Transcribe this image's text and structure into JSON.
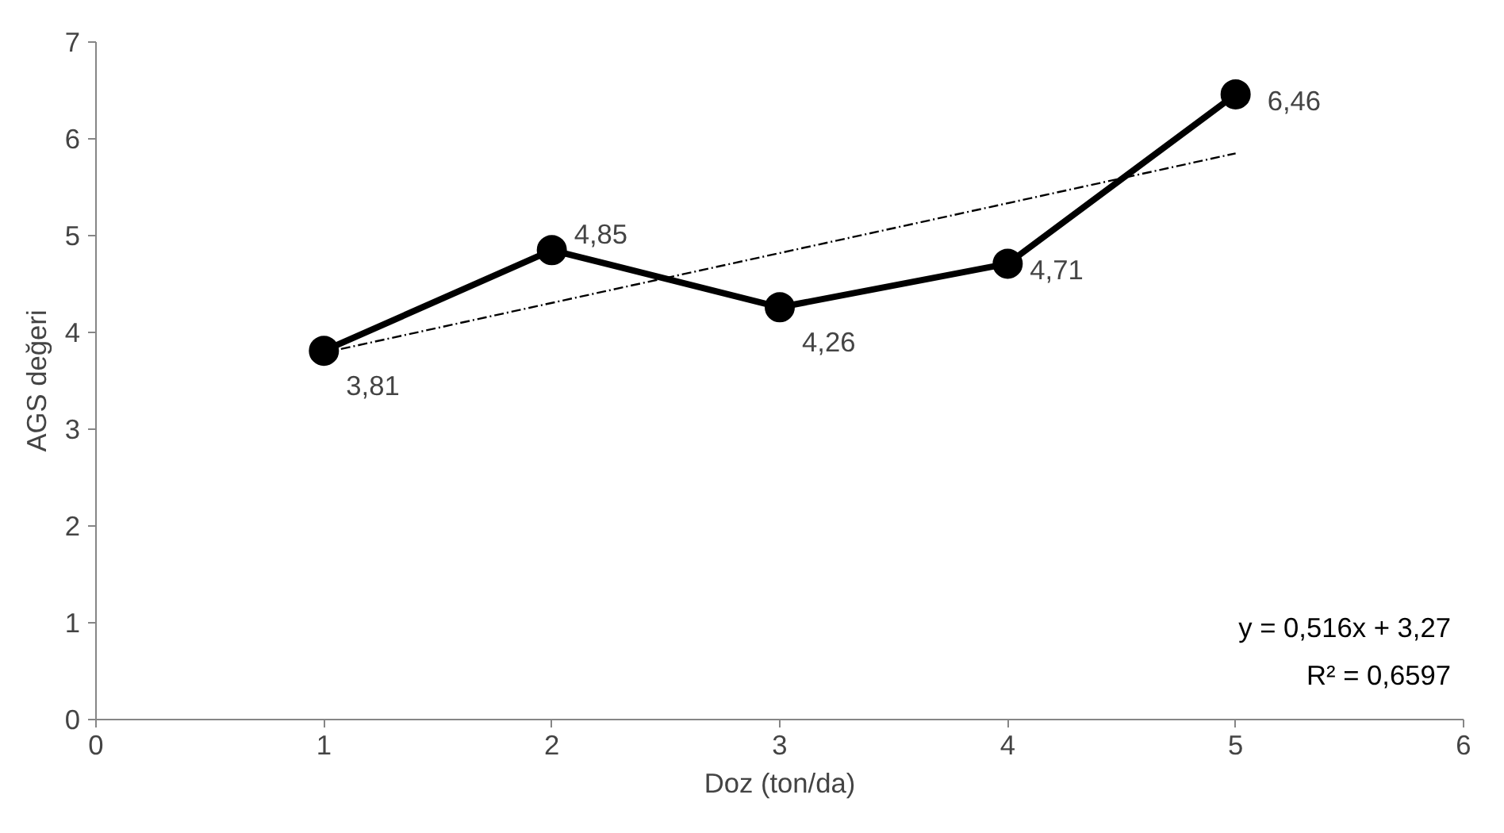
{
  "chart_data": {
    "type": "line",
    "xlabel": "Doz (ton/da)",
    "ylabel": "AGS değeri",
    "x": [
      1,
      2,
      3,
      4,
      5
    ],
    "series": [
      {
        "color": "#000000",
        "values": [
          3.81,
          4.85,
          4.26,
          4.71,
          6.46
        ],
        "value_labels": [
          "3,81",
          "4,85",
          "4,26",
          "4,71",
          "6,46"
        ],
        "marker": "circle",
        "line_style": "solid"
      },
      {
        "type": "line",
        "color": "#000000",
        "x": [
          1,
          5
        ],
        "values": [
          3.79,
          5.85
        ],
        "marker": "none",
        "line_style": "dashed"
      }
    ],
    "annotations": [
      "y = 0,516x + 3,27",
      "R² = 0,6597"
    ],
    "xlim": [
      0,
      6
    ],
    "xticks": [
      0,
      1,
      2,
      3,
      4,
      5,
      6
    ],
    "ylim": [
      0,
      7
    ],
    "yticks": [
      0,
      1,
      2,
      3,
      4,
      5,
      6,
      7
    ],
    "grid": false
  }
}
